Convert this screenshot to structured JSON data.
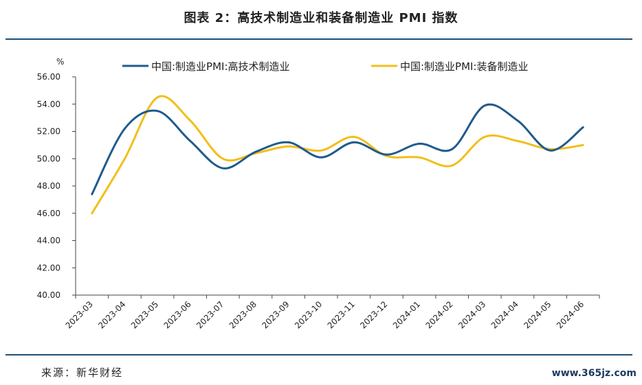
{
  "figure_title": "图表 2：高技术制造业和装备制造业 PMI 指数",
  "source": "来源：新华财经",
  "watermark": "www.365jz.com",
  "colors": {
    "series1": "#1f5b8c",
    "series2": "#f2be1a",
    "axis": "#444444",
    "rule": "#1f4e79"
  },
  "chart_data": {
    "type": "line",
    "title": "",
    "ylabel_unit": "%",
    "ylim": [
      40,
      56
    ],
    "yticks": [
      "40.00",
      "42.00",
      "44.00",
      "46.00",
      "48.00",
      "50.00",
      "52.00",
      "54.00",
      "56.00"
    ],
    "grid": false,
    "legend_position": "top",
    "categories": [
      "2023-03",
      "2023-04",
      "2023-05",
      "2023-06",
      "2023-07",
      "2023-08",
      "2023-09",
      "2023-10",
      "2023-11",
      "2023-12",
      "2024-01",
      "2024-02",
      "2024-03",
      "2024-04",
      "2024-05",
      "2024-06"
    ],
    "series": [
      {
        "name": "中国:制造业PMI:高技术制造业",
        "values": [
          47.4,
          52.2,
          53.5,
          51.3,
          49.3,
          50.5,
          51.2,
          50.1,
          51.2,
          50.3,
          51.1,
          50.7,
          53.9,
          52.8,
          50.6,
          52.3
        ]
      },
      {
        "name": "中国:制造业PMI:装备制造业",
        "values": [
          46.0,
          50.0,
          54.5,
          52.8,
          50.0,
          50.4,
          50.9,
          50.6,
          51.6,
          50.2,
          50.1,
          49.5,
          51.6,
          51.3,
          50.7,
          51.0
        ]
      }
    ]
  }
}
